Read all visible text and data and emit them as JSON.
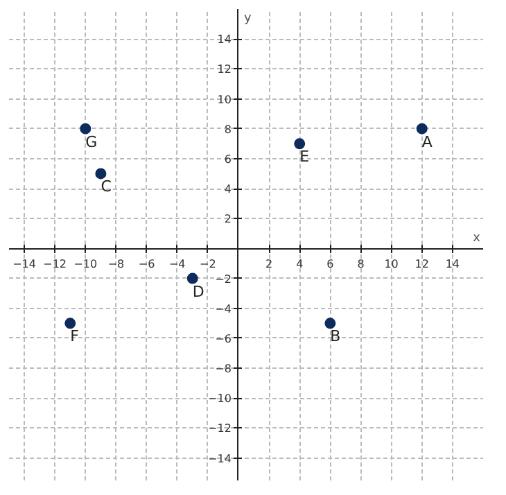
{
  "chart_data": {
    "type": "scatter",
    "xlabel": "x",
    "ylabel": "y",
    "x": [
      12,
      6,
      -9,
      -3,
      4,
      -11,
      -10
    ],
    "series": [
      {
        "color": "#0d2b5c",
        "values": [
          8,
          -5,
          5,
          -2,
          7,
          -5,
          8
        ]
      }
    ],
    "marker": "circle",
    "grid": true,
    "xlim": [
      -15,
      16
    ],
    "ylim": [
      -15.5,
      16
    ],
    "xticks": [
      -14,
      -12,
      -10,
      -8,
      -6,
      -4,
      -2,
      2,
      4,
      6,
      8,
      10,
      12,
      14
    ],
    "yticks": [
      -14,
      -12,
      -10,
      -8,
      -6,
      -4,
      -2,
      2,
      4,
      6,
      8,
      10,
      12,
      14
    ],
    "annotations": [
      {
        "text": "A",
        "x": 12,
        "y": 8
      },
      {
        "text": "B",
        "x": 6,
        "y": -5
      },
      {
        "text": "C",
        "x": -9,
        "y": 5
      },
      {
        "text": "D",
        "x": -3,
        "y": -2
      },
      {
        "text": "E",
        "x": 4,
        "y": 7
      },
      {
        "text": "F",
        "x": -11,
        "y": -5
      },
      {
        "text": "G",
        "x": -10,
        "y": 8
      }
    ]
  }
}
